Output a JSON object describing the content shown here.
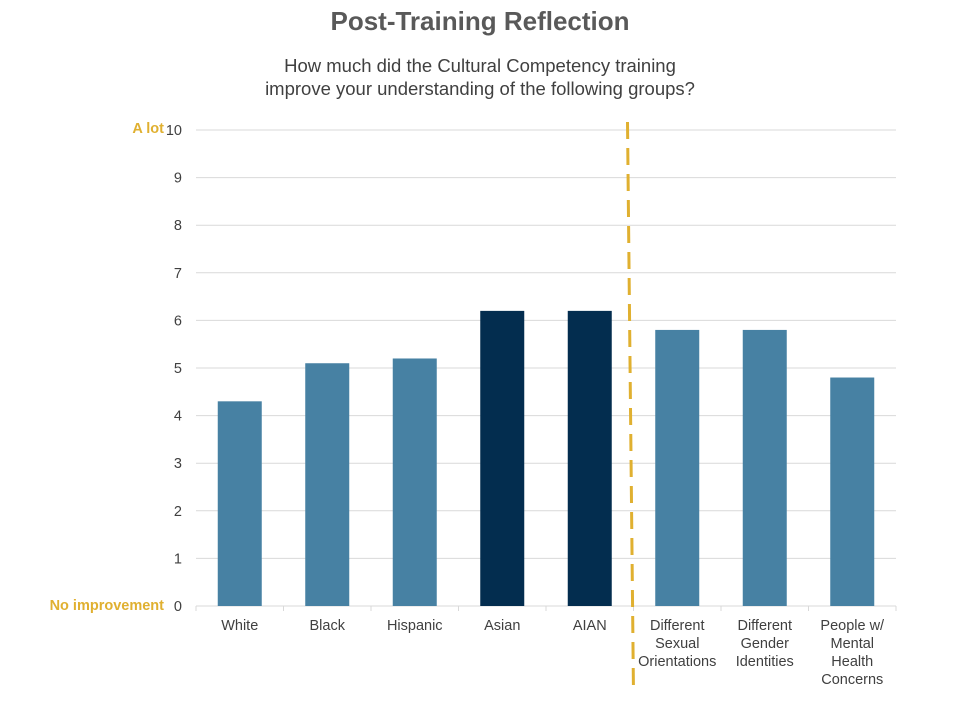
{
  "title": "Post-Training Reflection",
  "subtitle_lines": [
    "How much did the Cultural Competency training",
    "improve your understanding  of the following groups?"
  ],
  "scale_labels": {
    "high": "A lot",
    "low": "No improvement"
  },
  "colors": {
    "bar_light": "#4781a3",
    "bar_dark": "#032d4f",
    "divider": "#e0b030",
    "grid": "#d9d9d9",
    "text": "#404040"
  },
  "chart_data": {
    "type": "bar",
    "categories": [
      "White",
      "Black",
      "Hispanic",
      "Asian",
      "AIAN",
      "Different Sexual Orientations",
      "Different Gender Identities",
      "People w/ Mental Health Concerns"
    ],
    "category_lines": [
      [
        "White"
      ],
      [
        "Black"
      ],
      [
        "Hispanic"
      ],
      [
        "Asian"
      ],
      [
        "AIAN"
      ],
      [
        "Different",
        "Sexual",
        "Orientations"
      ],
      [
        "Different",
        "Gender",
        "Identities"
      ],
      [
        "People w/",
        "Mental",
        "Health",
        "Concerns"
      ]
    ],
    "values": [
      4.3,
      5.1,
      5.2,
      6.2,
      6.2,
      5.8,
      5.8,
      4.8
    ],
    "highlighted": [
      false,
      false,
      false,
      true,
      true,
      false,
      false,
      false
    ],
    "ylim": [
      0,
      10
    ],
    "yticks": [
      0,
      1,
      2,
      3,
      4,
      5,
      6,
      7,
      8,
      9,
      10
    ],
    "divider_after_index": 4,
    "grid": true,
    "legend": "none"
  }
}
